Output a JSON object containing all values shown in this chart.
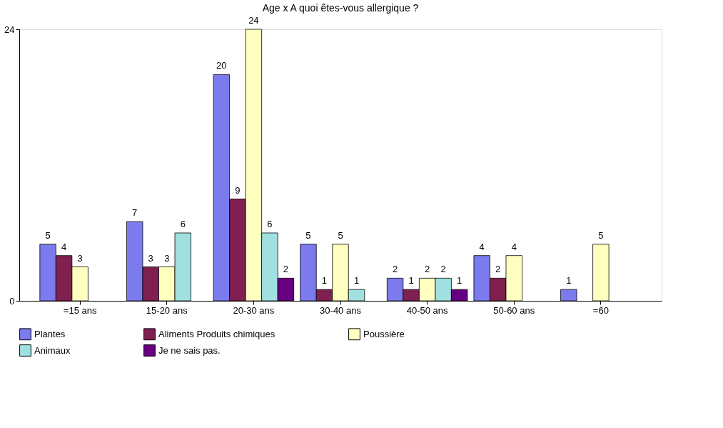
{
  "chart_data": {
    "type": "bar",
    "title": "Age x A quoi êtes-vous allergique ?",
    "categories": [
      "=15 ans",
      "15-20 ans",
      "20-30 ans",
      "30-40 ans",
      "40-50 ans",
      "50-60 ans",
      "=60"
    ],
    "series": [
      {
        "name": "Plantes",
        "color": "#7b7bee",
        "values": [
          5,
          7,
          20,
          5,
          2,
          4,
          1
        ]
      },
      {
        "name": "Aliments Produits chimiques",
        "color": "#7f2050",
        "values": [
          4,
          3,
          9,
          1,
          1,
          2,
          null
        ]
      },
      {
        "name": "Poussière",
        "color": "#ffffc0",
        "values": [
          3,
          3,
          24,
          5,
          2,
          4,
          5
        ]
      },
      {
        "name": "Animaux",
        "color": "#a0e0e0",
        "values": [
          null,
          6,
          6,
          1,
          2,
          null,
          null
        ]
      },
      {
        "name": "Je ne sais pas.",
        "color": "#660080",
        "values": [
          null,
          null,
          2,
          null,
          1,
          null,
          null
        ]
      }
    ],
    "ylim": [
      0,
      24
    ],
    "yticks": [
      0,
      24
    ],
    "legend": "bottom",
    "data_labels": true
  }
}
